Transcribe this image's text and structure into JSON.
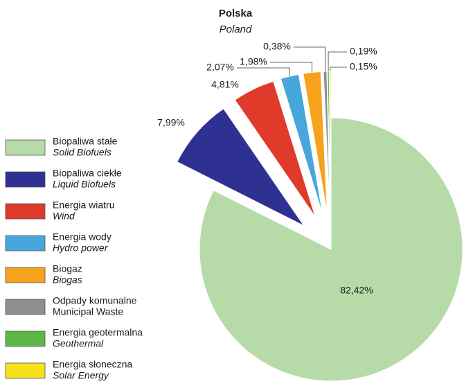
{
  "chart_data": {
    "type": "pie",
    "title": "Polska",
    "subtitle": "Poland",
    "categories": [
      "Biopaliwa stałe",
      "Biopaliwa ciekłe",
      "Energia wiatru",
      "Energia wody",
      "Biogaz",
      "Odpady komunalne",
      "Energia geotermalna",
      "Energia słoneczna"
    ],
    "categories_en": [
      "Solid Biofuels",
      "Liquid Biofuels",
      "Wind",
      "Hydro power",
      "Biogas",
      "Municipal Waste",
      "Geothermal",
      "Solar Energy"
    ],
    "values": [
      82.42,
      7.99,
      4.81,
      2.07,
      1.98,
      0.38,
      0.19,
      0.15
    ],
    "value_labels": [
      "82,42%",
      "7,99%",
      "4,81%",
      "2,07%",
      "1,98%",
      "0,38%",
      "0,19%",
      "0,15%"
    ],
    "colors": [
      "#b6dba8",
      "#2e3192",
      "#e03a2b",
      "#48a7da",
      "#f7a21b",
      "#8f8f8f",
      "#5cb946",
      "#f6e11a"
    ]
  }
}
